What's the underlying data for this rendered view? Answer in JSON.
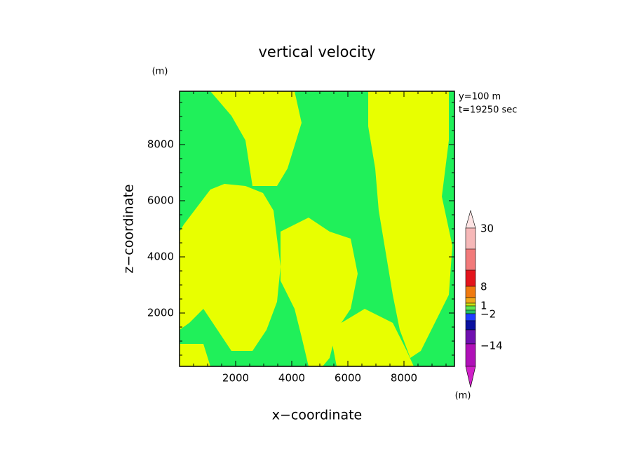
{
  "chart_data": {
    "type": "contour",
    "title": "vertical velocity",
    "x_label": "x−coordinate",
    "y_label": "z−coordinate",
    "x_unit": "(m)",
    "y_unit": "(m)",
    "annotations": [
      "y=100 m",
      "t=19250 sec"
    ],
    "xlim": [
      0,
      9800
    ],
    "ylim": [
      100,
      9900
    ],
    "xticks": [
      2000,
      4000,
      6000,
      8000
    ],
    "yticks": [
      2000,
      4000,
      6000,
      8000
    ],
    "colorbar": {
      "colors": [
        "#fde3e3",
        "#f6b8b8",
        "#f27a7a",
        "#e3141c",
        "#f07a10",
        "#f0a818",
        "#c8e010",
        "#60e850",
        "#20c060",
        "#1f3cff",
        "#0a10a0",
        "#7010b0",
        "#b010b8",
        "#d020c8"
      ],
      "ticks": [
        30,
        8,
        1,
        {
          "value": -2,
          "label": "−2"
        },
        {
          "value": -14,
          "label": "−14"
        }
      ],
      "unit": "(m)"
    }
  }
}
